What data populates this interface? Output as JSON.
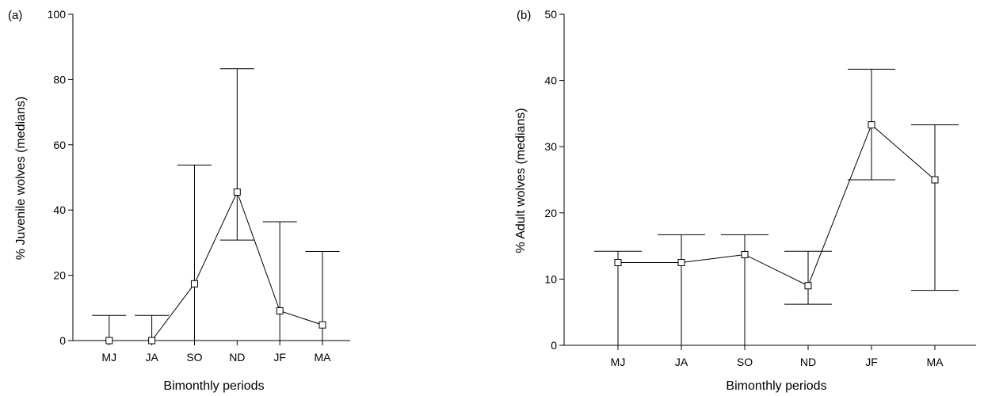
{
  "chart_data": [
    {
      "type": "line",
      "panel_label": "(a)",
      "xlabel": "Bimonthly periods",
      "ylabel": "% Juvenile wolves (medians)",
      "ylim": [
        0,
        100
      ],
      "yticks": [
        0,
        20,
        40,
        60,
        80,
        100
      ],
      "categories": [
        "MJ",
        "JA",
        "SO",
        "ND",
        "JF",
        "MA"
      ],
      "values": [
        0,
        0,
        17.4,
        45.5,
        9.1,
        4.8
      ],
      "lower": [
        0,
        0,
        0,
        30.8,
        0,
        0
      ],
      "upper": [
        7.7,
        7.7,
        53.8,
        83.3,
        36.4,
        27.3
      ],
      "grid": false,
      "marker": "open-square"
    },
    {
      "type": "line",
      "panel_label": "(b)",
      "xlabel": "Bimonthly periods",
      "ylabel": "% Adult wolves (medians)",
      "ylim": [
        0,
        50
      ],
      "yticks": [
        0,
        10,
        20,
        30,
        40,
        50
      ],
      "categories": [
        "MJ",
        "JA",
        "SO",
        "ND",
        "JF",
        "MA"
      ],
      "values": [
        12.5,
        12.5,
        13.7,
        9.0,
        33.3,
        25.0
      ],
      "lower": [
        0,
        0,
        0,
        6.2,
        25.0,
        8.3
      ],
      "upper": [
        14.2,
        16.7,
        16.7,
        14.2,
        41.7,
        33.3
      ],
      "grid": false,
      "marker": "open-square"
    }
  ]
}
